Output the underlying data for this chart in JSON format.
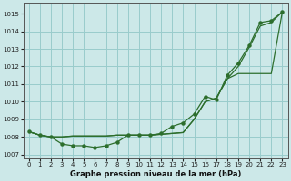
{
  "title": "Graphe pression niveau de la mer (hPa)",
  "background_color": "#cce8e8",
  "grid_color": "#99cccc",
  "line_color": "#2d6e2d",
  "xlim": [
    -0.5,
    23.5
  ],
  "ylim": [
    1006.8,
    1015.6
  ],
  "yticks": [
    1007,
    1008,
    1009,
    1010,
    1011,
    1012,
    1013,
    1014,
    1015
  ],
  "xticks": [
    0,
    1,
    2,
    3,
    4,
    5,
    6,
    7,
    8,
    9,
    10,
    11,
    12,
    13,
    14,
    15,
    16,
    17,
    18,
    19,
    20,
    21,
    22,
    23
  ],
  "series_dots": [
    1008.3,
    1008.1,
    1008.0,
    1007.6,
    1007.5,
    1007.5,
    1007.4,
    1007.5,
    1007.7,
    1008.1,
    1008.1,
    1008.1,
    1008.2,
    1008.6,
    1008.8,
    1009.3,
    1010.3,
    1010.1,
    1011.5,
    1012.2,
    1013.2,
    1014.5,
    1014.6,
    1015.1
  ],
  "series_smooth": [
    1008.3,
    1008.1,
    1008.0,
    1008.0,
    1008.05,
    1008.05,
    1008.05,
    1008.05,
    1008.1,
    1008.1,
    1008.1,
    1008.1,
    1008.15,
    1008.2,
    1008.25,
    1009.0,
    1010.0,
    1010.2,
    1011.3,
    1012.0,
    1013.1,
    1014.3,
    1014.5,
    1015.1
  ],
  "series_lower": [
    1008.3,
    1008.1,
    1008.0,
    1008.0,
    1008.05,
    1008.05,
    1008.05,
    1008.05,
    1008.1,
    1008.1,
    1008.1,
    1008.1,
    1008.15,
    1008.2,
    1008.25,
    1009.0,
    1010.0,
    1010.2,
    1011.3,
    1011.6,
    1011.6,
    1011.6,
    1011.6,
    1015.1
  ]
}
